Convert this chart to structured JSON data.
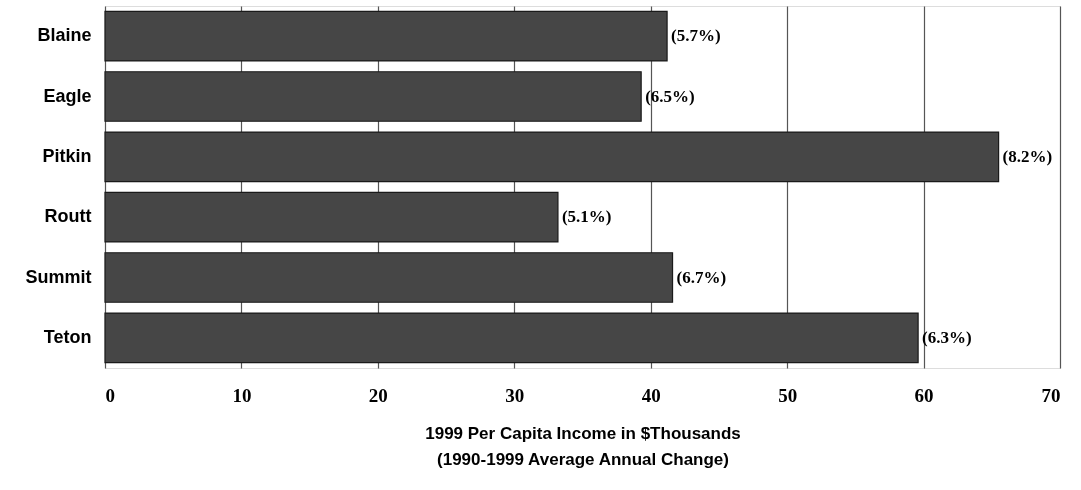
{
  "chart_data": {
    "type": "bar",
    "orientation": "horizontal",
    "categories": [
      "Blaine",
      "Eagle",
      "Pitkin",
      "Routt",
      "Summit",
      "Teton"
    ],
    "values": [
      41.2,
      39.3,
      65.5,
      33.2,
      41.6,
      59.6
    ],
    "annotations": [
      {
        "text": "(5.7%)",
        "x": 41.2,
        "y": "Blaine"
      },
      {
        "text": "(6.5%)",
        "x": 39.3,
        "y": "Eagle"
      },
      {
        "text": "(8.2%)",
        "x": 65.5,
        "y": "Pitkin"
      },
      {
        "text": "(5.1%)",
        "x": 33.2,
        "y": "Routt"
      },
      {
        "text": "(6.7%)",
        "x": 41.6,
        "y": "Summit"
      },
      {
        "text": "(6.3%)",
        "x": 59.6,
        "y": "Teton"
      }
    ],
    "color": "#464646",
    "xlabel": "1999 Per Capita Income in $Thousands\n(1990-1999 Average Annual Change)",
    "xlim": [
      0,
      70
    ],
    "xticks": [
      0,
      10,
      20,
      30,
      40,
      50,
      60,
      70
    ],
    "grid": "x"
  }
}
